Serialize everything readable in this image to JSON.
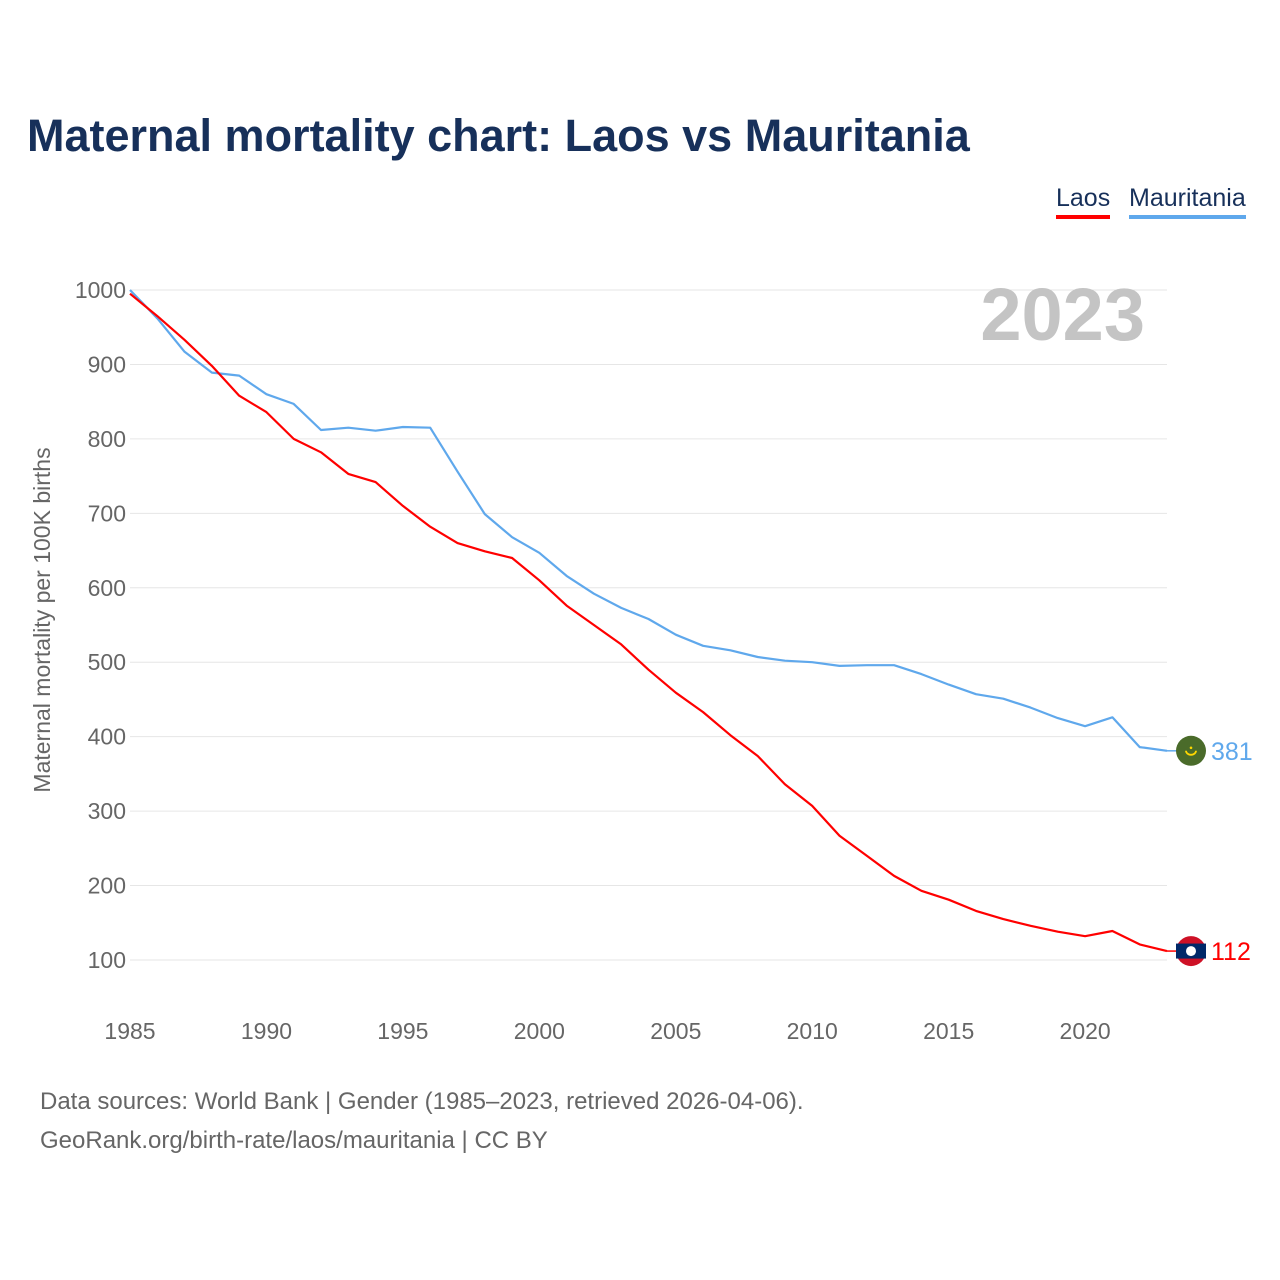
{
  "chart_data": {
    "type": "line",
    "title": "Maternal mortality chart: Laos vs Mauritania",
    "xlabel": "",
    "ylabel": "Maternal mortality per 100K births",
    "xlim": [
      1985,
      2023
    ],
    "ylim": [
      100,
      1000
    ],
    "grid": true,
    "legend_position": "top-right",
    "year_label": "2023",
    "x_ticks": [
      "1985",
      "1990",
      "1995",
      "2000",
      "2005",
      "2010",
      "2015",
      "2020"
    ],
    "y_ticks": [
      "100",
      "200",
      "300",
      "400",
      "500",
      "600",
      "700",
      "800",
      "900",
      "1000"
    ],
    "x": [
      1985,
      1986,
      1987,
      1988,
      1989,
      1990,
      1991,
      1992,
      1993,
      1994,
      1995,
      1996,
      1997,
      1998,
      1999,
      2000,
      2001,
      2002,
      2003,
      2004,
      2005,
      2006,
      2007,
      2008,
      2009,
      2010,
      2011,
      2012,
      2013,
      2014,
      2015,
      2016,
      2017,
      2018,
      2019,
      2020,
      2021,
      2022,
      2023
    ],
    "series": [
      {
        "name": "Laos",
        "color": "#ff0000",
        "end_label": "112",
        "values": [
          995,
          965,
          933,
          898,
          858,
          836,
          800,
          782,
          753,
          742,
          710,
          682,
          660,
          649,
          640,
          610,
          576,
          550,
          524,
          490,
          459,
          433,
          402,
          374,
          336,
          307,
          267,
          240,
          213,
          193,
          181,
          166,
          155,
          146,
          138,
          132,
          139,
          121,
          112
        ]
      },
      {
        "name": "Mauritania",
        "color": "#5fa8ec",
        "end_label": "381",
        "values": [
          1000,
          962,
          917,
          889,
          885,
          860,
          847,
          812,
          815,
          811,
          816,
          815,
          756,
          699,
          668,
          647,
          616,
          592,
          573,
          558,
          537,
          522,
          516,
          507,
          502,
          500,
          495,
          496,
          496,
          484,
          470,
          457,
          451,
          439,
          425,
          414,
          426,
          386,
          381
        ]
      }
    ]
  },
  "footer": {
    "line1": "Data sources: World Bank | Gender (1985–2023, retrieved 2026-04-06).",
    "line2": "GeoRank.org/birth-rate/laos/mauritania | CC BY"
  }
}
